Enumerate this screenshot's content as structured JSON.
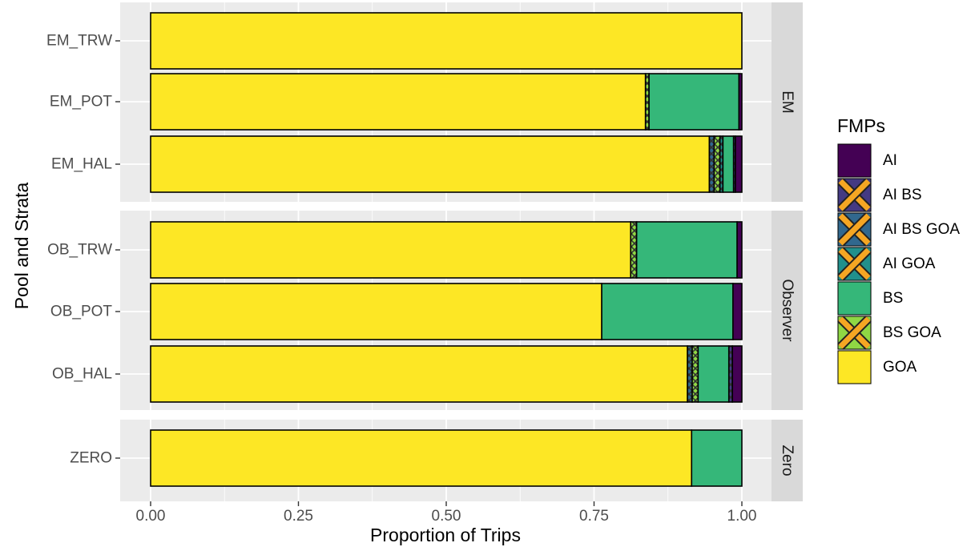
{
  "chart_data": {
    "type": "bar",
    "orientation": "horizontal",
    "stacked": true,
    "xlabel": "Proportion of Trips",
    "ylabel": "Pool and Strata",
    "xlim": [
      0,
      1
    ],
    "x_ticks": [
      "0.00",
      "0.25",
      "0.50",
      "0.75",
      "1.00"
    ],
    "grid": true,
    "legend_position": "right",
    "legend_title": "FMPs",
    "categories_order": [
      "AI",
      "AI BS",
      "AI BS GOA",
      "AI GOA",
      "BS",
      "BS GOA",
      "GOA"
    ],
    "legend": [
      {
        "name": "AI",
        "color": "#440154",
        "pattern": false
      },
      {
        "name": "AI BS",
        "color": "#443A83",
        "pattern": true
      },
      {
        "name": "AI BS GOA",
        "color": "#31688E",
        "pattern": true
      },
      {
        "name": "AI GOA",
        "color": "#21908C",
        "pattern": true
      },
      {
        "name": "BS",
        "color": "#35B779",
        "pattern": false
      },
      {
        "name": "BS GOA",
        "color": "#8FD744",
        "pattern": true
      },
      {
        "name": "GOA",
        "color": "#FDE725",
        "pattern": false
      }
    ],
    "facets": [
      {
        "label": "EM",
        "rows": [
          {
            "label": "EM_TRW",
            "segments": [
              {
                "fmp": "GOA",
                "value": 1.0
              }
            ]
          },
          {
            "label": "EM_POT",
            "segments": [
              {
                "fmp": "GOA",
                "value": 0.837
              },
              {
                "fmp": "BS GOA",
                "value": 0.006
              },
              {
                "fmp": "BS",
                "value": 0.152
              },
              {
                "fmp": "AI",
                "value": 0.005
              }
            ]
          },
          {
            "label": "EM_HAL",
            "segments": [
              {
                "fmp": "GOA",
                "value": 0.945
              },
              {
                "fmp": "AI BS GOA",
                "value": 0.008
              },
              {
                "fmp": "BS GOA",
                "value": 0.01
              },
              {
                "fmp": "AI GOA",
                "value": 0.005
              },
              {
                "fmp": "BS",
                "value": 0.018
              },
              {
                "fmp": "AI BS",
                "value": 0.003
              },
              {
                "fmp": "AI",
                "value": 0.011
              }
            ]
          }
        ]
      },
      {
        "label": "Observer",
        "rows": [
          {
            "label": "OB_TRW",
            "segments": [
              {
                "fmp": "GOA",
                "value": 0.812
              },
              {
                "fmp": "BS GOA",
                "value": 0.01
              },
              {
                "fmp": "BS",
                "value": 0.17
              },
              {
                "fmp": "AI",
                "value": 0.008
              }
            ]
          },
          {
            "label": "OB_POT",
            "segments": [
              {
                "fmp": "GOA",
                "value": 0.763
              },
              {
                "fmp": "BS",
                "value": 0.222
              },
              {
                "fmp": "AI",
                "value": 0.015
              }
            ]
          },
          {
            "label": "OB_HAL",
            "segments": [
              {
                "fmp": "GOA",
                "value": 0.908
              },
              {
                "fmp": "AI BS GOA",
                "value": 0.008
              },
              {
                "fmp": "BS GOA",
                "value": 0.01
              },
              {
                "fmp": "BS",
                "value": 0.052
              },
              {
                "fmp": "AI BS",
                "value": 0.006
              },
              {
                "fmp": "AI",
                "value": 0.016
              }
            ]
          }
        ]
      },
      {
        "label": "Zero",
        "rows": [
          {
            "label": "ZERO",
            "segments": [
              {
                "fmp": "GOA",
                "value": 0.915
              },
              {
                "fmp": "BS",
                "value": 0.085
              }
            ]
          }
        ]
      }
    ]
  }
}
